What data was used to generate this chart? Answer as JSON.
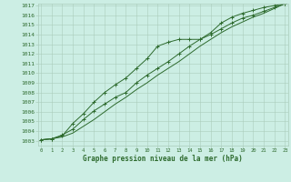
{
  "title": "Graphe pression niveau de la mer (hPa)",
  "xlabel_hours": [
    0,
    1,
    2,
    3,
    4,
    5,
    6,
    7,
    8,
    9,
    10,
    11,
    12,
    13,
    14,
    15,
    16,
    17,
    18,
    19,
    20,
    21,
    22,
    23
  ],
  "line1": [
    1003.1,
    1003.2,
    1003.5,
    1004.8,
    1005.8,
    1007.0,
    1008.0,
    1008.8,
    1009.5,
    1010.5,
    1011.5,
    1012.8,
    1013.2,
    1013.5,
    1013.5,
    1013.5,
    1014.2,
    1015.2,
    1015.8,
    1016.2,
    1016.5,
    1016.8,
    1017.0,
    1017.2
  ],
  "line2": [
    1003.1,
    1003.2,
    1003.6,
    1004.2,
    1005.2,
    1006.1,
    1006.8,
    1007.5,
    1008.0,
    1009.0,
    1009.8,
    1010.5,
    1011.2,
    1012.0,
    1012.8,
    1013.5,
    1014.0,
    1014.6,
    1015.2,
    1015.7,
    1016.0,
    1016.4,
    1016.8,
    1017.2
  ],
  "line3": [
    1003.1,
    1003.2,
    1003.4,
    1003.8,
    1004.5,
    1005.2,
    1006.0,
    1006.8,
    1007.5,
    1008.3,
    1009.0,
    1009.8,
    1010.5,
    1011.2,
    1012.0,
    1012.8,
    1013.5,
    1014.2,
    1014.8,
    1015.3,
    1015.8,
    1016.2,
    1016.7,
    1017.2
  ],
  "line_color": "#2d6a2d",
  "marker_color": "#2d6a2d",
  "bg_color": "#cceee4",
  "grid_color": "#aaccbb",
  "text_color": "#2d6a2d",
  "ylim_min": 1003,
  "ylim_max": 1017,
  "yticks": [
    1003,
    1004,
    1005,
    1006,
    1007,
    1008,
    1009,
    1010,
    1011,
    1012,
    1013,
    1014,
    1015,
    1016,
    1017
  ]
}
